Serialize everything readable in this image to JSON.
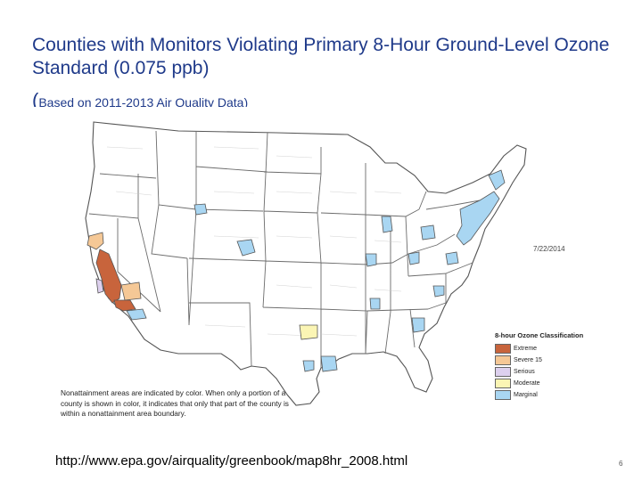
{
  "title": "Counties with Monitors Violating Primary 8-Hour Ground-Level Ozone Standard (0.075 ppb)",
  "subtitle_paren": "(",
  "subtitle": "Based on 2011-2013 Air Quality Data)",
  "map": {
    "date": "7/22/2014",
    "legend_title": "8-hour Ozone Classification",
    "legend": [
      {
        "label": "Extreme",
        "color": "#c8643c"
      },
      {
        "label": "Severe 15",
        "color": "#f5c896"
      },
      {
        "label": "Serious",
        "color": "#ddd0ee"
      },
      {
        "label": "Moderate",
        "color": "#fbf5b4"
      },
      {
        "label": "Marginal",
        "color": "#a9d6f2"
      }
    ],
    "note": "Nonattainment areas are indicated by color. When only a portion of a county is shown in color, it indicates that only that part of the county is within a nonattainment area boundary."
  },
  "source_url": "http://www.epa.gov/airquality/greenbook/map8hr_2008.html",
  "page_number": "6"
}
